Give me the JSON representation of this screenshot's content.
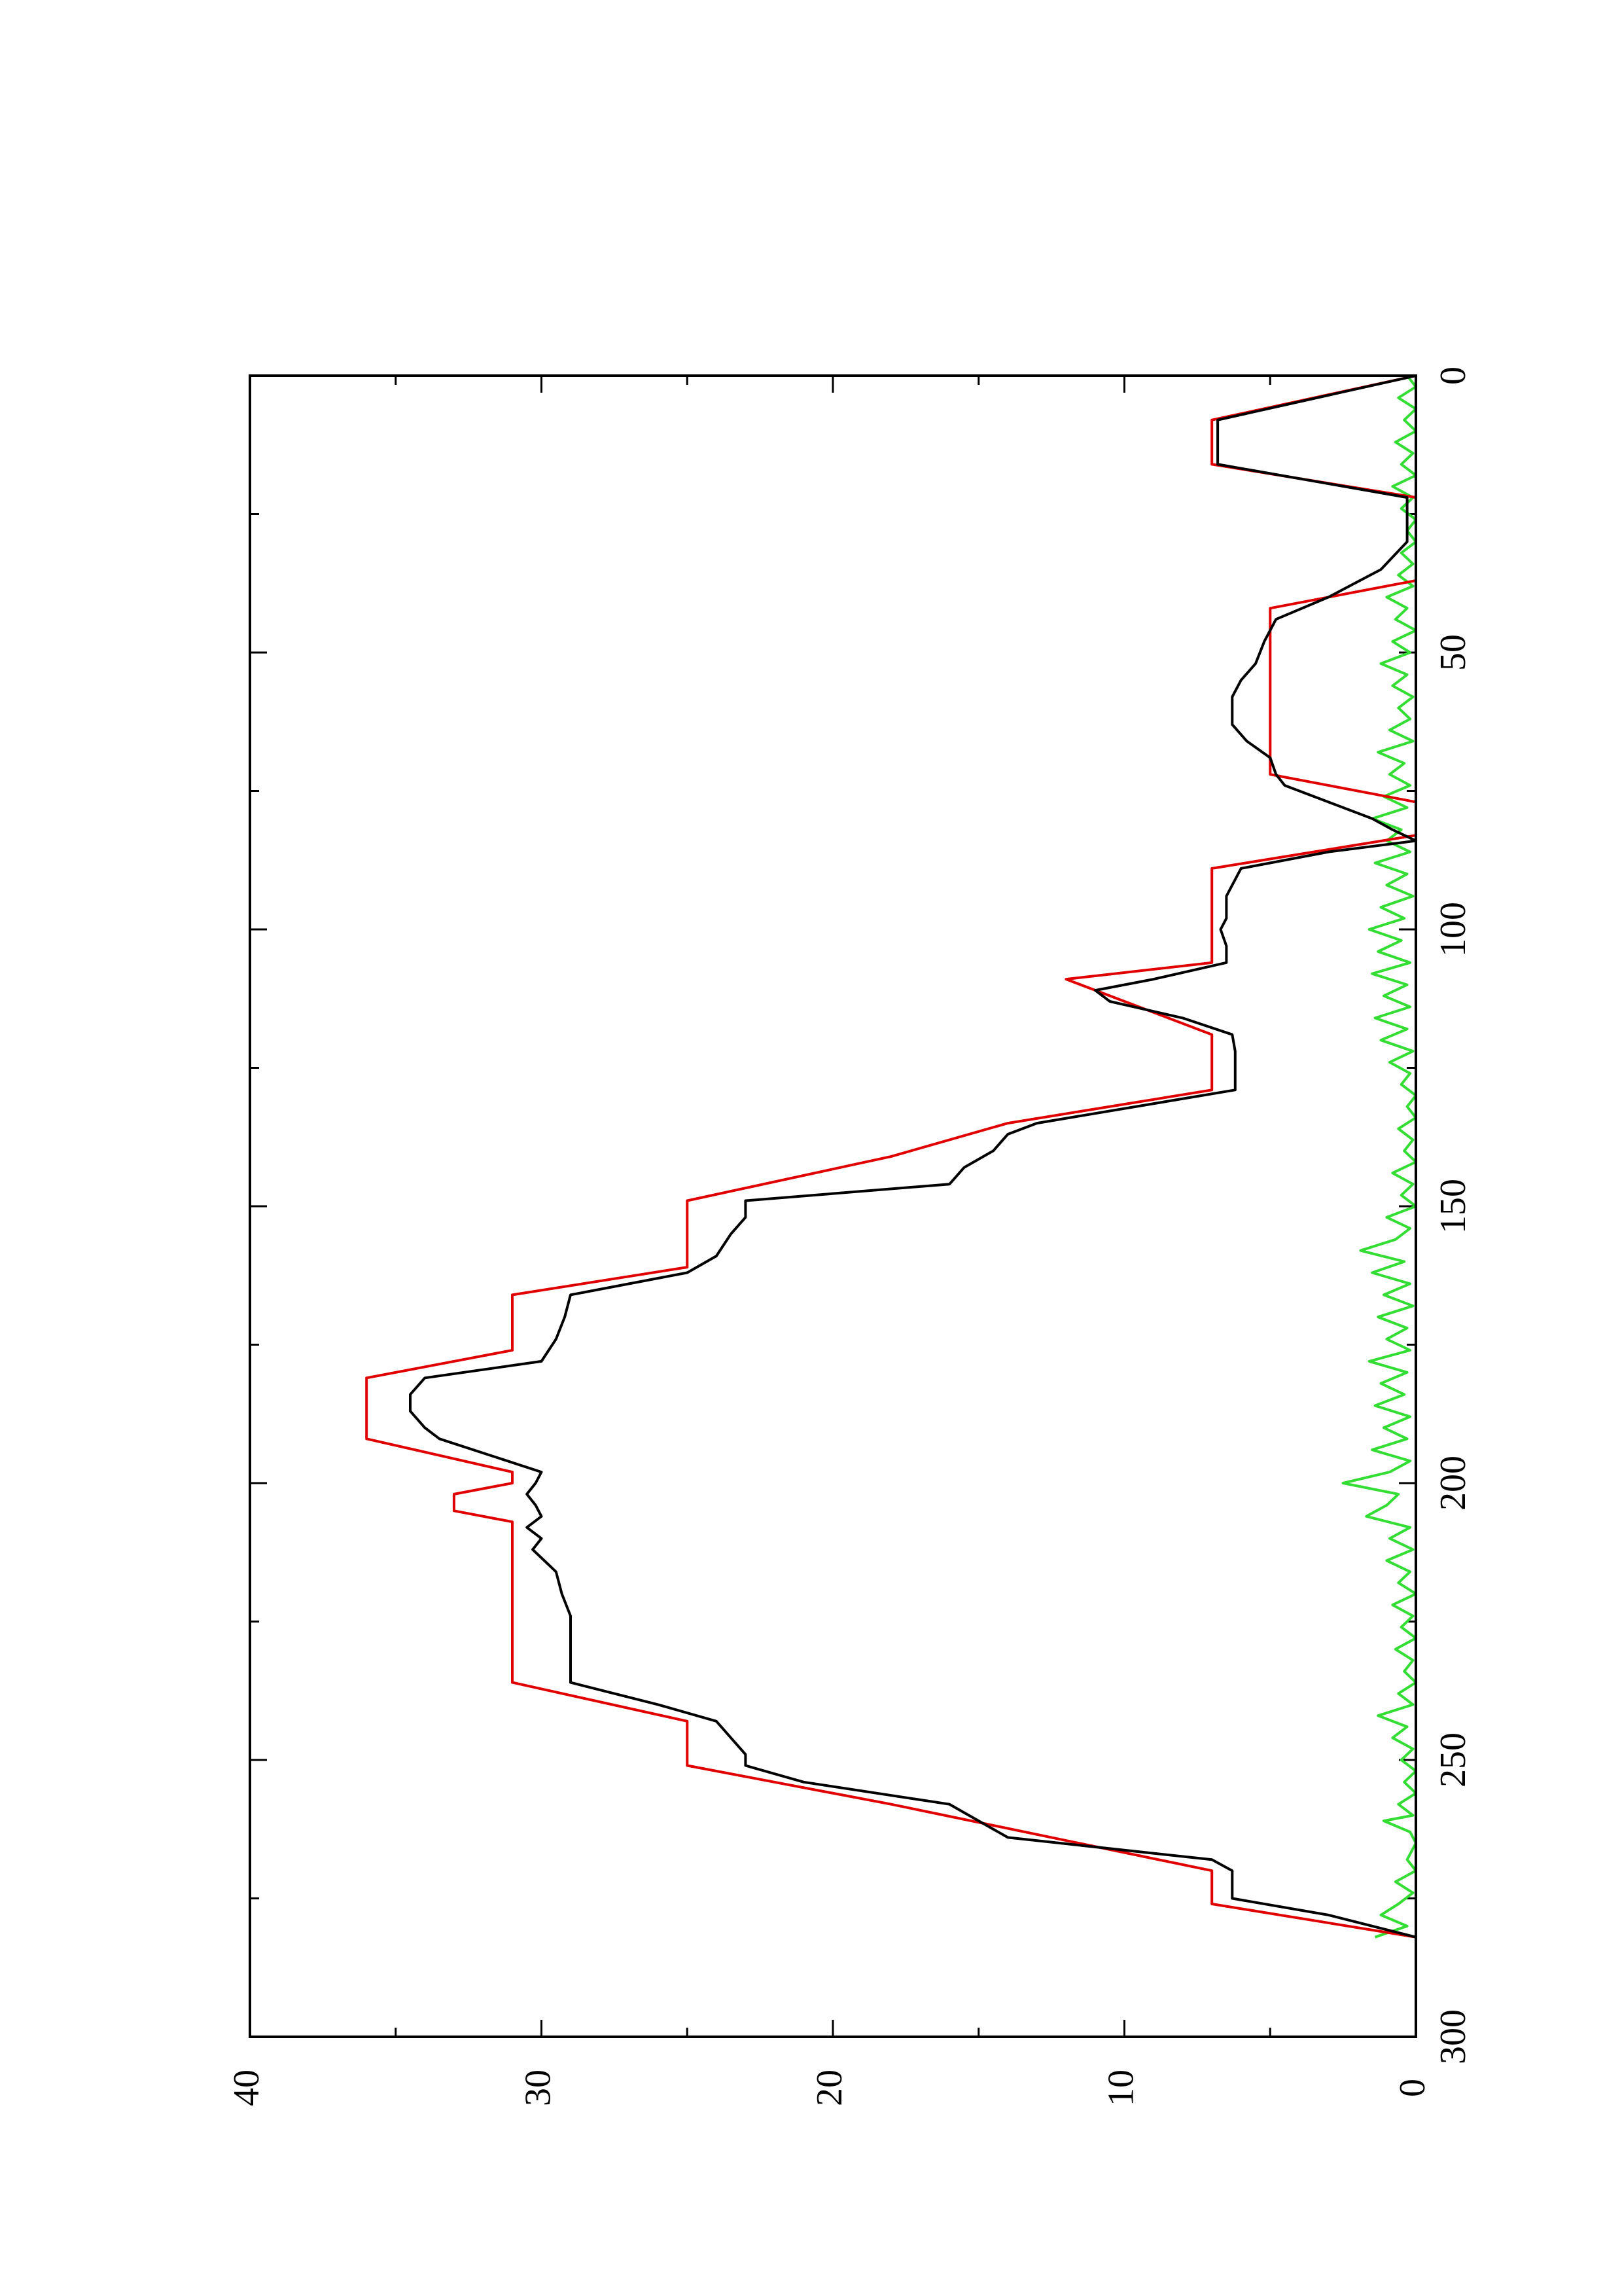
{
  "chart_data": {
    "type": "line",
    "orientation": "rotated-90-cw",
    "title": "",
    "xlabel": "",
    "ylabel": "",
    "xlim": [
      0,
      300
    ],
    "ylim": [
      0,
      40
    ],
    "x_ticks": [
      0,
      50,
      100,
      150,
      200,
      250,
      300
    ],
    "x_tick_labels": [
      "0",
      "50",
      "100",
      "150",
      "200",
      "250",
      "300"
    ],
    "x_minor_ticks": [
      25,
      75,
      125,
      175,
      225,
      275
    ],
    "y_ticks": [
      0,
      10,
      20,
      30,
      40
    ],
    "y_tick_labels": [
      "0",
      "10",
      "20",
      "30",
      "40"
    ],
    "y_minor_ticks": [
      5,
      15,
      25,
      35
    ],
    "grid": false,
    "legend": "none",
    "series": [
      {
        "color": "#e00000",
        "points": [
          [
            0,
            0
          ],
          [
            8,
            7
          ],
          [
            16,
            7
          ],
          [
            22,
            0
          ],
          [
            37,
            0
          ],
          [
            42,
            5
          ],
          [
            72,
            5
          ],
          [
            77,
            0
          ],
          [
            83,
            0
          ],
          [
            89,
            7
          ],
          [
            106,
            7
          ],
          [
            109,
            12
          ],
          [
            119,
            7
          ],
          [
            129,
            7
          ],
          [
            135,
            14
          ],
          [
            141,
            18
          ],
          [
            149,
            25
          ],
          [
            161,
            25
          ],
          [
            166,
            31
          ],
          [
            176,
            31
          ],
          [
            181,
            36
          ],
          [
            192,
            36
          ],
          [
            198,
            31
          ],
          [
            200,
            31
          ],
          [
            202,
            33
          ],
          [
            205,
            33
          ],
          [
            207,
            31
          ],
          [
            236,
            31
          ],
          [
            243,
            25
          ],
          [
            251,
            25
          ],
          [
            258,
            18
          ],
          [
            270,
            7
          ],
          [
            276,
            7
          ],
          [
            282,
            0
          ]
        ]
      },
      {
        "color": "#000000",
        "points": [
          [
            0,
            0
          ],
          [
            8,
            6.8
          ],
          [
            16,
            6.8
          ],
          [
            22,
            0.3
          ],
          [
            30,
            0.3
          ],
          [
            35,
            1.2
          ],
          [
            40,
            3
          ],
          [
            44,
            4.8
          ],
          [
            48,
            5.2
          ],
          [
            52,
            5.5
          ],
          [
            55,
            6
          ],
          [
            58,
            6.3
          ],
          [
            63,
            6.3
          ],
          [
            66,
            5.8
          ],
          [
            69,
            5
          ],
          [
            72,
            4.8
          ],
          [
            74,
            4.5
          ],
          [
            77,
            3
          ],
          [
            80,
            1.5
          ],
          [
            82,
            0.8
          ],
          [
            84,
            0
          ],
          [
            86,
            3
          ],
          [
            89,
            6
          ],
          [
            92,
            6.3
          ],
          [
            94,
            6.5
          ],
          [
            98,
            6.5
          ],
          [
            100,
            6.7
          ],
          [
            103,
            6.5
          ],
          [
            106,
            6.5
          ],
          [
            109,
            9
          ],
          [
            111,
            11
          ],
          [
            113,
            10.5
          ],
          [
            116,
            8
          ],
          [
            119,
            6.3
          ],
          [
            122,
            6.2
          ],
          [
            129,
            6.2
          ],
          [
            135,
            13
          ],
          [
            137,
            14
          ],
          [
            140,
            14.5
          ],
          [
            143,
            15.5
          ],
          [
            146,
            16
          ],
          [
            149,
            23
          ],
          [
            152,
            23
          ],
          [
            155,
            23.5
          ],
          [
            159,
            24
          ],
          [
            162,
            25
          ],
          [
            166,
            29
          ],
          [
            170,
            29.2
          ],
          [
            174,
            29.5
          ],
          [
            178,
            30
          ],
          [
            181,
            34
          ],
          [
            184,
            34.5
          ],
          [
            187,
            34.5
          ],
          [
            190,
            34
          ],
          [
            192,
            33.5
          ],
          [
            198,
            30
          ],
          [
            200,
            30.2
          ],
          [
            202,
            30.5
          ],
          [
            204,
            30.2
          ],
          [
            206,
            30
          ],
          [
            208,
            30.5
          ],
          [
            210,
            30
          ],
          [
            212,
            30.3
          ],
          [
            216,
            29.5
          ],
          [
            220,
            29.3
          ],
          [
            224,
            29
          ],
          [
            229,
            29
          ],
          [
            236,
            29
          ],
          [
            240,
            26
          ],
          [
            243,
            24
          ],
          [
            246,
            23.5
          ],
          [
            249,
            23
          ],
          [
            251,
            23
          ],
          [
            254,
            21
          ],
          [
            258,
            16
          ],
          [
            261,
            15
          ],
          [
            264,
            14
          ],
          [
            268,
            7
          ],
          [
            270,
            6.3
          ],
          [
            275,
            6.3
          ],
          [
            278,
            3
          ],
          [
            282,
            0
          ]
        ]
      },
      {
        "color": "#33dd33",
        "points": [
          [
            0,
            0.3
          ],
          [
            2,
            0
          ],
          [
            4,
            0.6
          ],
          [
            6,
            0
          ],
          [
            8,
            0.4
          ],
          [
            10,
            0
          ],
          [
            12,
            0.7
          ],
          [
            14,
            0.1
          ],
          [
            16,
            0.5
          ],
          [
            18,
            0
          ],
          [
            20,
            0.8
          ],
          [
            22,
            0.1
          ],
          [
            24,
            0.5
          ],
          [
            26,
            0
          ],
          [
            28,
            0.3
          ],
          [
            30,
            0
          ],
          [
            32,
            0.5
          ],
          [
            34,
            0.1
          ],
          [
            36,
            0.6
          ],
          [
            38,
            0.1
          ],
          [
            40,
            1
          ],
          [
            42,
            0.3
          ],
          [
            44,
            0.7
          ],
          [
            46,
            0
          ],
          [
            48,
            0.8
          ],
          [
            50,
            0.2
          ],
          [
            52,
            1.2
          ],
          [
            54,
            0.3
          ],
          [
            56,
            0.8
          ],
          [
            58,
            0.1
          ],
          [
            60,
            0.6
          ],
          [
            62,
            0.2
          ],
          [
            64,
            0.9
          ],
          [
            66,
            0.1
          ],
          [
            68,
            1.3
          ],
          [
            70,
            0.4
          ],
          [
            72,
            0.9
          ],
          [
            74,
            0.2
          ],
          [
            76,
            1.1
          ],
          [
            78,
            0.3
          ],
          [
            80,
            1.5
          ],
          [
            82,
            0.5
          ],
          [
            84,
            1
          ],
          [
            86,
            0.2
          ],
          [
            88,
            1.4
          ],
          [
            90,
            0.3
          ],
          [
            92,
            1
          ],
          [
            94,
            0.1
          ],
          [
            96,
            1.2
          ],
          [
            98,
            0.4
          ],
          [
            100,
            1.6
          ],
          [
            102,
            0.5
          ],
          [
            104,
            1.3
          ],
          [
            106,
            0.2
          ],
          [
            108,
            1.5
          ],
          [
            110,
            0.3
          ],
          [
            112,
            1.1
          ],
          [
            114,
            0.2
          ],
          [
            116,
            1.4
          ],
          [
            118,
            0.3
          ],
          [
            120,
            1.2
          ],
          [
            122,
            0.1
          ],
          [
            124,
            0.9
          ],
          [
            126,
            0.2
          ],
          [
            128,
            0.5
          ],
          [
            130,
            0
          ],
          [
            132,
            0.3
          ],
          [
            134,
            0
          ],
          [
            136,
            0.6
          ],
          [
            138,
            0.1
          ],
          [
            140,
            0.4
          ],
          [
            142,
            0
          ],
          [
            144,
            0.8
          ],
          [
            146,
            0.1
          ],
          [
            148,
            0.5
          ],
          [
            150,
            0
          ],
          [
            152,
            1
          ],
          [
            154,
            0.2
          ],
          [
            156,
            0.7
          ],
          [
            158,
            1.9
          ],
          [
            160,
            0.4
          ],
          [
            162,
            1.5
          ],
          [
            164,
            0.2
          ],
          [
            166,
            1.1
          ],
          [
            168,
            0.1
          ],
          [
            170,
            1.3
          ],
          [
            172,
            0.3
          ],
          [
            174,
            1
          ],
          [
            176,
            0.2
          ],
          [
            178,
            1.6
          ],
          [
            180,
            0.3
          ],
          [
            182,
            1.2
          ],
          [
            184,
            0.4
          ],
          [
            186,
            1.4
          ],
          [
            188,
            0.2
          ],
          [
            190,
            1.1
          ],
          [
            192,
            0.3
          ],
          [
            194,
            1.5
          ],
          [
            196,
            0.2
          ],
          [
            198,
            0.9
          ],
          [
            200,
            2.5
          ],
          [
            202,
            0.6
          ],
          [
            204,
            1
          ],
          [
            206,
            1.7
          ],
          [
            208,
            0.2
          ],
          [
            210,
            0.9
          ],
          [
            212,
            0.1
          ],
          [
            214,
            1
          ],
          [
            216,
            0.2
          ],
          [
            218,
            0.6
          ],
          [
            220,
            0
          ],
          [
            222,
            0.8
          ],
          [
            224,
            0.1
          ],
          [
            226,
            0.5
          ],
          [
            228,
            0
          ],
          [
            230,
            0.7
          ],
          [
            232,
            0.1
          ],
          [
            234,
            0.4
          ],
          [
            236,
            0
          ],
          [
            238,
            0.6
          ],
          [
            240,
            0.1
          ],
          [
            242,
            1.3
          ],
          [
            244,
            0.3
          ],
          [
            246,
            0.8
          ],
          [
            248,
            0.1
          ],
          [
            250,
            0.5
          ],
          [
            252,
            0
          ],
          [
            254,
            0.4
          ],
          [
            256,
            0
          ],
          [
            258,
            0.6
          ],
          [
            260,
            0.1
          ],
          [
            261,
            1.1
          ],
          [
            263,
            0.2
          ],
          [
            265,
            0
          ],
          [
            268,
            0.3
          ],
          [
            270,
            0
          ],
          [
            272,
            0.7
          ],
          [
            274,
            0.1
          ],
          [
            276,
            0.6
          ],
          [
            278,
            1.2
          ],
          [
            280,
            0.3
          ],
          [
            282,
            1.4
          ]
        ]
      }
    ]
  }
}
